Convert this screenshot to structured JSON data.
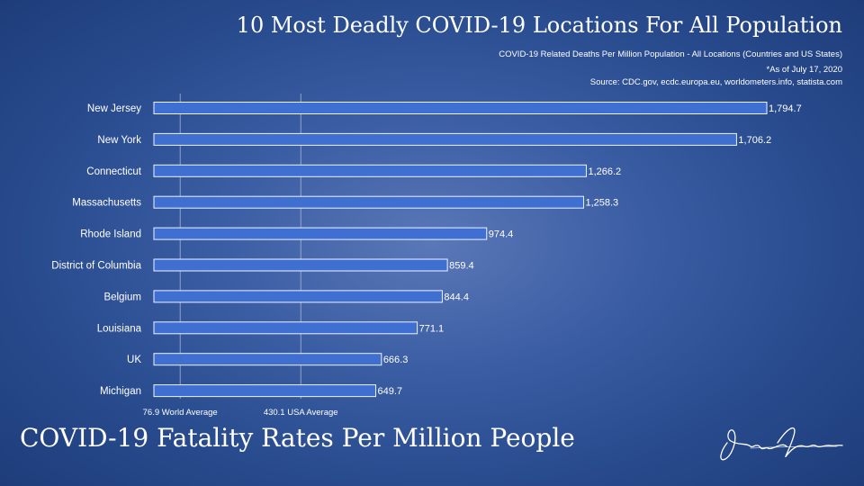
{
  "header": {
    "title": "10 Most Deadly COVID-19 Locations For All Population",
    "subtitle": "COVID-19 Related Deaths Per Million Population - All Locations (Countries and US States)",
    "asof": "*As of July 17, 2020",
    "source": "Source: CDC.gov, ecdc.europa.eu, worldometers.info, statista.com"
  },
  "footer": {
    "title": "COVID-19 Fatality Rates Per Million People"
  },
  "colors": {
    "bar_fill": "#3f6fd0",
    "bar_stroke": "#eef3ff",
    "ref_line": "#b9c6e3"
  },
  "chart_data": {
    "type": "bar",
    "orientation": "horizontal",
    "categories": [
      "New Jersey",
      "New York",
      "Connecticut",
      "Massachusetts",
      "Rhode Island",
      "District of Columbia",
      "Belgium",
      "Louisiana",
      "UK",
      "Michigan"
    ],
    "values": [
      1794.7,
      1706.2,
      1266.2,
      1258.3,
      974.4,
      859.4,
      844.4,
      771.1,
      666.3,
      649.7
    ],
    "value_labels": [
      "1,794.7",
      "1,706.2",
      "1,266.2",
      "1,258.3",
      "974.4",
      "859.4",
      "844.4",
      "771.1",
      "666.3",
      "649.7"
    ],
    "reference_lines": [
      {
        "value": 76.9,
        "label": "76.9 World Average"
      },
      {
        "value": 430.1,
        "label": "430.1 USA Average"
      }
    ],
    "xlim": [
      0,
      1794.7
    ],
    "grid": false,
    "legend": "none"
  }
}
